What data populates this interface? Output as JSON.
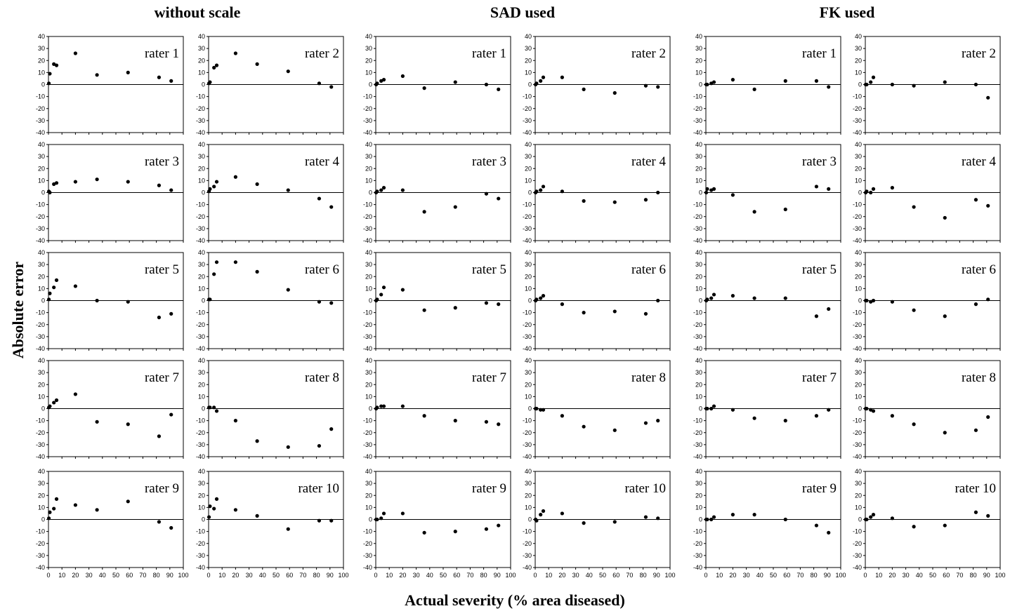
{
  "chart_data": {
    "type": "scatter",
    "xlabel": "Actual severity (% area diseased)",
    "ylabel": "Absolute error",
    "xlim": [
      0,
      100
    ],
    "ylim": [
      -40,
      40
    ],
    "xticks": [
      "0",
      "10",
      "20",
      "30",
      "40",
      "50",
      "60",
      "70",
      "80",
      "90",
      "100"
    ],
    "yticks": [
      "40",
      "30",
      "20",
      "10",
      "0",
      "-10",
      "-20",
      "-30",
      "-40"
    ],
    "x": [
      0.3,
      1,
      4,
      6,
      20,
      36,
      59,
      82,
      91
    ],
    "groups": [
      {
        "title": "without scale",
        "panels": [
          {
            "label": "rater 1",
            "y": [
              1,
              9,
              17,
              16,
              26,
              8,
              10,
              6,
              3
            ]
          },
          {
            "label": "rater 2",
            "y": [
              1,
              2,
              14,
              16,
              26,
              17,
              11,
              1,
              -2
            ]
          },
          {
            "label": "rater 3",
            "y": [
              1,
              0,
              7,
              8,
              9,
              11,
              9,
              6,
              2
            ]
          },
          {
            "label": "rater 4",
            "y": [
              1,
              3,
              5,
              9,
              13,
              7,
              2,
              -5,
              -12
            ]
          },
          {
            "label": "rater 5",
            "y": [
              1,
              6,
              11,
              17,
              12,
              0,
              -1,
              -14,
              -11
            ]
          },
          {
            "label": "rater 6",
            "y": [
              1,
              1,
              22,
              32,
              32,
              24,
              9,
              -1,
              -2
            ]
          },
          {
            "label": "rater 7",
            "y": [
              1,
              2,
              5,
              7,
              12,
              -11,
              -13,
              -23,
              -5
            ]
          },
          {
            "label": "rater 8",
            "y": [
              1,
              1,
              1,
              -2,
              -10,
              -27,
              -32,
              -31,
              -17
            ]
          },
          {
            "label": "rater 9",
            "y": [
              1,
              6,
              9,
              17,
              12,
              8,
              15,
              -2,
              -7
            ]
          },
          {
            "label": "rater 10",
            "y": [
              2,
              11,
              9,
              17,
              8,
              3,
              -8,
              -1,
              -1
            ]
          }
        ]
      },
      {
        "title": "SAD used",
        "panels": [
          {
            "label": "rater 1",
            "y": [
              0,
              1,
              3,
              4,
              7,
              -3,
              2,
              0,
              -4
            ]
          },
          {
            "label": "rater 2",
            "y": [
              0,
              1,
              3,
              6,
              6,
              -4,
              -7,
              -1,
              -2
            ]
          },
          {
            "label": "rater 3",
            "y": [
              0,
              1,
              2,
              4,
              2,
              -16,
              -12,
              -1,
              -5
            ]
          },
          {
            "label": "rater 4",
            "y": [
              0,
              1,
              2,
              5,
              1,
              -7,
              -8,
              -6,
              0
            ]
          },
          {
            "label": "rater 5",
            "y": [
              0,
              1,
              5,
              11,
              9,
              -8,
              -6,
              -2,
              -3
            ]
          },
          {
            "label": "rater 6",
            "y": [
              0,
              1,
              2,
              4,
              -3,
              -10,
              -9,
              -11,
              0
            ]
          },
          {
            "label": "rater 7",
            "y": [
              0,
              1,
              2,
              2,
              2,
              -6,
              -10,
              -11,
              -13
            ]
          },
          {
            "label": "rater 8",
            "y": [
              0,
              0,
              -1,
              -1,
              -6,
              -15,
              -18,
              -12,
              -10
            ]
          },
          {
            "label": "rater 9",
            "y": [
              0,
              0,
              1,
              5,
              5,
              -11,
              -10,
              -8,
              -5
            ]
          },
          {
            "label": "rater 10",
            "y": [
              0,
              -1,
              4,
              7,
              5,
              -3,
              -2,
              2,
              1
            ]
          }
        ]
      },
      {
        "title": "FK used",
        "panels": [
          {
            "label": "rater 1",
            "y": [
              0,
              0,
              1,
              2,
              4,
              -4,
              3,
              3,
              -2
            ]
          },
          {
            "label": "rater 2",
            "y": [
              0,
              0,
              2,
              6,
              0,
              -1,
              2,
              0,
              -11
            ]
          },
          {
            "label": "rater 3",
            "y": [
              0,
              3,
              2,
              3,
              -2,
              -16,
              -14,
              5,
              3
            ]
          },
          {
            "label": "rater 4",
            "y": [
              0,
              1,
              0,
              3,
              4,
              -12,
              -21,
              -6,
              -11
            ]
          },
          {
            "label": "rater 5",
            "y": [
              0,
              1,
              2,
              5,
              4,
              2,
              2,
              -13,
              -7
            ]
          },
          {
            "label": "rater 6",
            "y": [
              0,
              0,
              -1,
              0,
              -1,
              -8,
              -13,
              -3,
              1
            ]
          },
          {
            "label": "rater 7",
            "y": [
              0,
              0,
              0,
              2,
              -1,
              -8,
              -10,
              -6,
              -1
            ]
          },
          {
            "label": "rater 8",
            "y": [
              0,
              0,
              -1,
              -2,
              -6,
              -13,
              -20,
              -18,
              -7
            ]
          },
          {
            "label": "rater 9",
            "y": [
              0,
              0,
              0,
              2,
              4,
              4,
              0,
              -5,
              -11
            ]
          },
          {
            "label": "rater 10",
            "y": [
              0,
              0,
              2,
              4,
              1,
              -6,
              -5,
              6,
              3
            ]
          }
        ]
      }
    ]
  }
}
